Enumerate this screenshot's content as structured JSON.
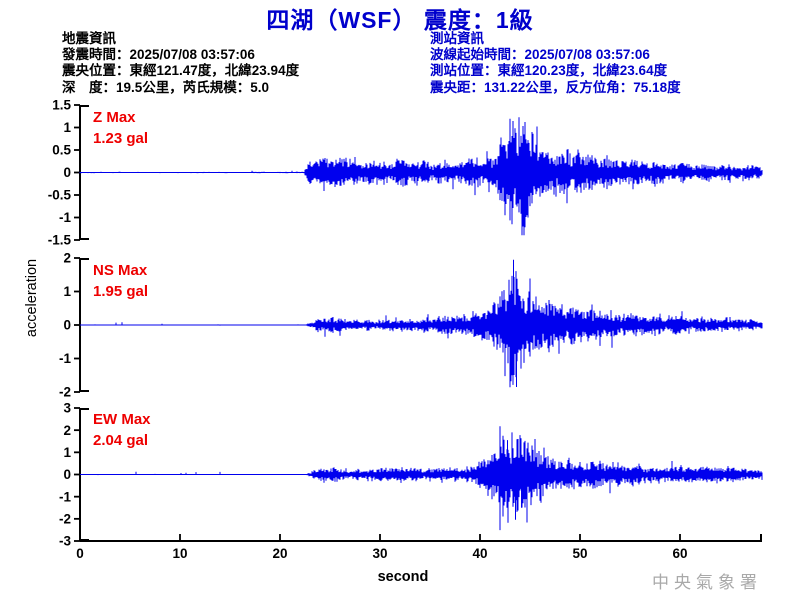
{
  "title": "四湖（WSF） 震度：1級",
  "earthquake_info": {
    "heading": "地震資訊",
    "lines": [
      "發震時間：2025/07/08 03:57:06",
      "震央位置：東經121.47度，北緯23.94度",
      "深　度：19.5公里，芮氏規模：5.0"
    ]
  },
  "station_info": {
    "heading": "測站資訊",
    "lines": [
      "波線起始時間：2025/07/08 03:57:06",
      "測站位置：東經120.23度，北緯23.64度",
      "震央距：131.22公里，反方位角：75.18度"
    ]
  },
  "watermark": "中央氣象署",
  "colors": {
    "title_blue": "#0000CC",
    "info_blue": "#0000CC",
    "trace_blue": "#0000EE",
    "label_red": "#EE0000",
    "axis_black": "#000000",
    "watermark_gray": "#A9A9A9"
  },
  "chart_data": {
    "type": "line",
    "xlabel": "second",
    "ylabel": "acceleration",
    "amplitude_unit": "gal",
    "xlim": [
      0,
      68.2
    ],
    "xticks": [
      0,
      10,
      20,
      30,
      40,
      50,
      60
    ],
    "grid": false,
    "p_arrival_s": 22.5,
    "s_arrival_s": 41.5,
    "channels": [
      {
        "name": "Z",
        "label": "Z Max",
        "max_label": "1.23 gal",
        "max_gal": 1.23,
        "ylim": [
          -1.5,
          1.5
        ],
        "yticks": [
          1.5,
          1,
          0.5,
          0,
          -0.5,
          -1,
          -1.5
        ],
        "envelope": [
          [
            0,
            0.012
          ],
          [
            22.4,
            0.012
          ],
          [
            22.8,
            0.18
          ],
          [
            23.6,
            0.42
          ],
          [
            26,
            0.32
          ],
          [
            30,
            0.24
          ],
          [
            34,
            0.22
          ],
          [
            38,
            0.26
          ],
          [
            40.5,
            0.32
          ],
          [
            41.5,
            0.55
          ],
          [
            42.5,
            0.95
          ],
          [
            43.5,
            1.15
          ],
          [
            44.5,
            1.05
          ],
          [
            45.5,
            0.65
          ],
          [
            47,
            0.5
          ],
          [
            49,
            0.42
          ],
          [
            52,
            0.33
          ],
          [
            56,
            0.28
          ],
          [
            60,
            0.2
          ],
          [
            64,
            0.16
          ],
          [
            68.2,
            0.12
          ]
        ],
        "spikes": [
          [
            43.9,
            1.23
          ],
          [
            44.3,
            -1.2
          ],
          [
            43.0,
            1.05
          ],
          [
            42.5,
            -0.95
          ],
          [
            45.2,
            0.9
          ]
        ]
      },
      {
        "name": "NS",
        "label": "NS Max",
        "max_label": "1.95 gal",
        "max_gal": 1.95,
        "ylim": [
          -2,
          2
        ],
        "yticks": [
          2,
          1,
          0,
          -1,
          -2
        ],
        "envelope": [
          [
            0,
            0.012
          ],
          [
            22.6,
            0.012
          ],
          [
            23.2,
            0.1
          ],
          [
            24,
            0.2
          ],
          [
            26,
            0.17
          ],
          [
            30,
            0.16
          ],
          [
            34,
            0.18
          ],
          [
            38,
            0.22
          ],
          [
            40,
            0.35
          ],
          [
            41.5,
            0.75
          ],
          [
            42.5,
            1.2
          ],
          [
            43.4,
            1.5
          ],
          [
            44.3,
            1.25
          ],
          [
            45.5,
            0.95
          ],
          [
            47,
            0.75
          ],
          [
            49,
            0.55
          ],
          [
            52,
            0.4
          ],
          [
            56,
            0.3
          ],
          [
            60,
            0.24
          ],
          [
            64,
            0.18
          ],
          [
            68.2,
            0.15
          ]
        ],
        "spikes": [
          [
            43.35,
            1.95
          ],
          [
            43.65,
            -1.85
          ],
          [
            42.9,
            1.35
          ],
          [
            44.1,
            -1.3
          ],
          [
            44.9,
            1.0
          ]
        ]
      },
      {
        "name": "EW",
        "label": "EW Max",
        "max_label": "2.04 gal",
        "max_gal": 2.04,
        "ylim": [
          -3,
          3
        ],
        "yticks": [
          3,
          2,
          1,
          0,
          -1,
          -2,
          -3
        ],
        "envelope": [
          [
            0,
            0.015
          ],
          [
            22.6,
            0.015
          ],
          [
            23.2,
            0.15
          ],
          [
            24,
            0.3
          ],
          [
            26,
            0.25
          ],
          [
            30,
            0.24
          ],
          [
            34,
            0.26
          ],
          [
            38,
            0.3
          ],
          [
            40,
            0.5
          ],
          [
            41.5,
            1.0
          ],
          [
            42.6,
            1.7
          ],
          [
            43.5,
            1.8
          ],
          [
            44.5,
            1.3
          ],
          [
            45.5,
            1.0
          ],
          [
            47,
            0.8
          ],
          [
            49,
            0.65
          ],
          [
            52,
            0.5
          ],
          [
            56,
            0.42
          ],
          [
            60,
            0.35
          ],
          [
            64,
            0.3
          ],
          [
            68.2,
            0.25
          ]
        ],
        "spikes": [
          [
            43.55,
            -2.04
          ],
          [
            43.2,
            1.9
          ],
          [
            42.75,
            1.55
          ],
          [
            44.15,
            -1.5
          ],
          [
            42.3,
            -1.4
          ]
        ]
      }
    ]
  }
}
